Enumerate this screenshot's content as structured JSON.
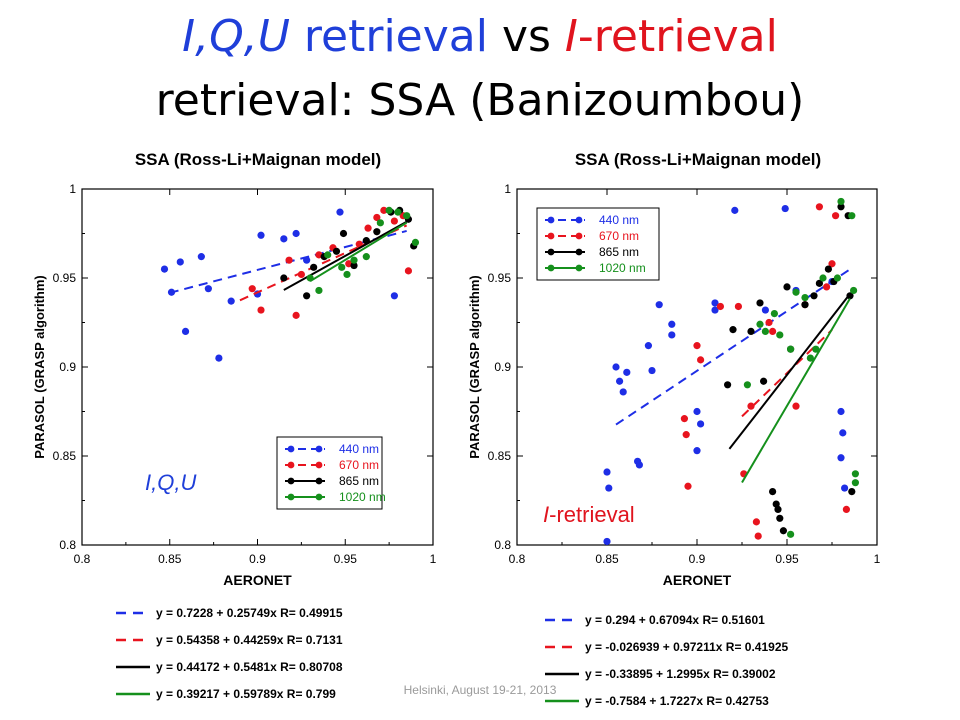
{
  "slide": {
    "title_part1": "I,Q,U",
    "title_part2": " retrieval",
    "title_part3": " vs ",
    "title_part4": "I-retrieval",
    "title_line2": "retrieval: SSA (Banizoumbou)",
    "footer": "Helsinki, August 19-21, 2013"
  },
  "colors": {
    "440": "#1e2ee6",
    "670": "#e8141e",
    "865": "#000000",
    "1020": "#15901c",
    "title_blue": "#1f3fd9",
    "title_red": "#e0141e"
  },
  "chart_data": [
    {
      "type": "scatter",
      "title": "SSA (Ross-Li+Maignan model)",
      "xlabel": "AERONET",
      "ylabel": "PARASOL (GRASP algorithm)",
      "xlim": [
        0.8,
        1
      ],
      "ylim": [
        0.8,
        1
      ],
      "xticks": [
        "0.8",
        "0.85",
        "0.9",
        "0.95",
        "1"
      ],
      "yticks": [
        "0.8",
        "0.85",
        "0.9",
        "0.95",
        "1"
      ],
      "annotation": "I,Q,U",
      "legend_placement": "bottom-right",
      "series": [
        {
          "name": "440 nm",
          "color_key": "440",
          "points": [
            [
              0.847,
              0.955
            ],
            [
              0.851,
              0.942
            ],
            [
              0.856,
              0.959
            ],
            [
              0.859,
              0.92
            ],
            [
              0.868,
              0.962
            ],
            [
              0.872,
              0.944
            ],
            [
              0.878,
              0.905
            ],
            [
              0.885,
              0.937
            ],
            [
              0.9,
              0.941
            ],
            [
              0.902,
              0.974
            ],
            [
              0.915,
              0.972
            ],
            [
              0.922,
              0.975
            ],
            [
              0.928,
              0.96
            ],
            [
              0.947,
              0.987
            ],
            [
              0.978,
              0.94
            ]
          ],
          "fit": {
            "intercept": 0.7228,
            "slope": 0.25749,
            "R": 0.49915,
            "x_range": [
              0.85,
              0.985
            ]
          }
        },
        {
          "name": "670 nm",
          "color_key": "670",
          "points": [
            [
              0.897,
              0.944
            ],
            [
              0.902,
              0.932
            ],
            [
              0.918,
              0.96
            ],
            [
              0.922,
              0.929
            ],
            [
              0.925,
              0.952
            ],
            [
              0.935,
              0.963
            ],
            [
              0.943,
              0.967
            ],
            [
              0.952,
              0.958
            ],
            [
              0.958,
              0.969
            ],
            [
              0.963,
              0.978
            ],
            [
              0.968,
              0.984
            ],
            [
              0.972,
              0.988
            ],
            [
              0.978,
              0.982
            ],
            [
              0.983,
              0.985
            ],
            [
              0.986,
              0.954
            ]
          ],
          "fit": {
            "intercept": 0.54358,
            "slope": 0.44259,
            "R": 0.7131,
            "x_range": [
              0.89,
              0.985
            ]
          }
        },
        {
          "name": "865 nm",
          "color_key": "865",
          "points": [
            [
              0.915,
              0.95
            ],
            [
              0.928,
              0.94
            ],
            [
              0.932,
              0.956
            ],
            [
              0.938,
              0.962
            ],
            [
              0.945,
              0.965
            ],
            [
              0.949,
              0.975
            ],
            [
              0.955,
              0.957
            ],
            [
              0.962,
              0.971
            ],
            [
              0.968,
              0.976
            ],
            [
              0.976,
              0.987
            ],
            [
              0.981,
              0.988
            ],
            [
              0.986,
              0.983
            ],
            [
              0.989,
              0.968
            ]
          ],
          "fit": {
            "intercept": 0.44172,
            "slope": 0.5481,
            "R": 0.80708,
            "x_range": [
              0.915,
              0.985
            ]
          }
        },
        {
          "name": "1020 nm",
          "color_key": "1020",
          "points": [
            [
              0.93,
              0.95
            ],
            [
              0.935,
              0.943
            ],
            [
              0.94,
              0.963
            ],
            [
              0.948,
              0.956
            ],
            [
              0.951,
              0.952
            ],
            [
              0.955,
              0.96
            ],
            [
              0.962,
              0.962
            ],
            [
              0.97,
              0.981
            ],
            [
              0.975,
              0.988
            ],
            [
              0.98,
              0.987
            ],
            [
              0.985,
              0.985
            ],
            [
              0.99,
              0.97
            ]
          ],
          "fit": {
            "intercept": 0.39217,
            "slope": 0.59789,
            "R": 0.799,
            "x_range": [
              0.93,
              0.985
            ]
          }
        }
      ],
      "equations": [
        "y = 0.7228 + 0.25749x   R= 0.49915",
        "y = 0.54358 + 0.44259x   R= 0.7131",
        "y = 0.44172 + 0.5481x   R= 0.80708",
        "y = 0.39217 + 0.59789x   R= 0.799"
      ]
    },
    {
      "type": "scatter",
      "title": "SSA (Ross-Li+Maignan model)",
      "xlabel": "AERONET",
      "ylabel": "PARASOL (GRASP algorithm)",
      "xlim": [
        0.8,
        1
      ],
      "ylim": [
        0.8,
        1
      ],
      "xticks": [
        "0.8",
        "0.85",
        "0.9",
        "0.95",
        "1"
      ],
      "yticks": [
        "0.8",
        "0.85",
        "0.9",
        "0.95",
        "1"
      ],
      "annotation": "I-retrieval",
      "legend_placement": "top-left",
      "series": [
        {
          "name": "440 nm",
          "color_key": "440",
          "points": [
            [
              0.85,
              0.841
            ],
            [
              0.851,
              0.832
            ],
            [
              0.85,
              0.802
            ],
            [
              0.855,
              0.9
            ],
            [
              0.857,
              0.892
            ],
            [
              0.859,
              0.886
            ],
            [
              0.861,
              0.897
            ],
            [
              0.867,
              0.847
            ],
            [
              0.868,
              0.845
            ],
            [
              0.873,
              0.912
            ],
            [
              0.875,
              0.898
            ],
            [
              0.879,
              0.935
            ],
            [
              0.886,
              0.924
            ],
            [
              0.886,
              0.918
            ],
            [
              0.9,
              0.875
            ],
            [
              0.902,
              0.868
            ],
            [
              0.9,
              0.853
            ],
            [
              0.91,
              0.936
            ],
            [
              0.91,
              0.932
            ],
            [
              0.921,
              0.988
            ],
            [
              0.938,
              0.932
            ],
            [
              0.949,
              0.989
            ],
            [
              0.955,
              0.943
            ],
            [
              0.975,
              0.948
            ],
            [
              0.98,
              0.875
            ],
            [
              0.981,
              0.863
            ],
            [
              0.98,
              0.849
            ],
            [
              0.982,
              0.832
            ]
          ],
          "fit": {
            "intercept": 0.294,
            "slope": 0.67094,
            "R": 0.51601,
            "x_range": [
              0.855,
              0.985
            ]
          }
        },
        {
          "name": "670 nm",
          "color_key": "670",
          "points": [
            [
              0.893,
              0.871
            ],
            [
              0.894,
              0.862
            ],
            [
              0.895,
              0.833
            ],
            [
              0.9,
              0.912
            ],
            [
              0.902,
              0.904
            ],
            [
              0.913,
              0.934
            ],
            [
              0.923,
              0.934
            ],
            [
              0.926,
              0.84
            ],
            [
              0.93,
              0.878
            ],
            [
              0.933,
              0.813
            ],
            [
              0.934,
              0.805
            ],
            [
              0.94,
              0.925
            ],
            [
              0.942,
              0.92
            ],
            [
              0.955,
              0.878
            ],
            [
              0.96,
              0.935
            ],
            [
              0.968,
              0.99
            ],
            [
              0.972,
              0.945
            ],
            [
              0.975,
              0.958
            ],
            [
              0.977,
              0.985
            ],
            [
              0.983,
              0.82
            ]
          ],
          "fit": {
            "intercept": -0.026939,
            "slope": 0.97211,
            "R": 0.41925,
            "x_range": [
              0.925,
              0.975
            ]
          }
        },
        {
          "name": "865 nm",
          "color_key": "865",
          "points": [
            [
              0.917,
              0.89
            ],
            [
              0.92,
              0.921
            ],
            [
              0.93,
              0.92
            ],
            [
              0.935,
              0.936
            ],
            [
              0.937,
              0.892
            ],
            [
              0.942,
              0.83
            ],
            [
              0.944,
              0.823
            ],
            [
              0.945,
              0.82
            ],
            [
              0.946,
              0.815
            ],
            [
              0.948,
              0.808
            ],
            [
              0.95,
              0.945
            ],
            [
              0.952,
              0.91
            ],
            [
              0.96,
              0.935
            ],
            [
              0.965,
              0.94
            ],
            [
              0.968,
              0.947
            ],
            [
              0.973,
              0.955
            ],
            [
              0.976,
              0.948
            ],
            [
              0.98,
              0.99
            ],
            [
              0.984,
              0.985
            ],
            [
              0.985,
              0.94
            ],
            [
              0.986,
              0.83
            ]
          ],
          "fit": {
            "intercept": -0.33895,
            "slope": 1.2995,
            "R": 0.39002,
            "x_range": [
              0.918,
              0.985
            ]
          }
        },
        {
          "name": "1020 nm",
          "color_key": "1020",
          "points": [
            [
              0.928,
              0.89
            ],
            [
              0.935,
              0.924
            ],
            [
              0.938,
              0.92
            ],
            [
              0.943,
              0.93
            ],
            [
              0.946,
              0.918
            ],
            [
              0.952,
              0.91
            ],
            [
              0.955,
              0.942
            ],
            [
              0.96,
              0.939
            ],
            [
              0.963,
              0.905
            ],
            [
              0.966,
              0.91
            ],
            [
              0.97,
              0.95
            ],
            [
              0.978,
              0.95
            ],
            [
              0.98,
              0.993
            ],
            [
              0.986,
              0.985
            ],
            [
              0.987,
              0.943
            ],
            [
              0.988,
              0.84
            ],
            [
              0.988,
              0.835
            ],
            [
              0.952,
              0.806
            ]
          ],
          "fit": {
            "intercept": -0.7584,
            "slope": 1.7227,
            "R": 0.42753,
            "x_range": [
              0.925,
              0.985
            ]
          }
        }
      ],
      "equations": [
        "y = 0.294 + 0.67094x   R= 0.51601",
        "y = -0.026939 + 0.97211x   R= 0.41925",
        "y = -0.33895 + 1.2995x   R= 0.39002",
        "y = -0.7584 + 1.7227x   R= 0.42753"
      ]
    }
  ]
}
